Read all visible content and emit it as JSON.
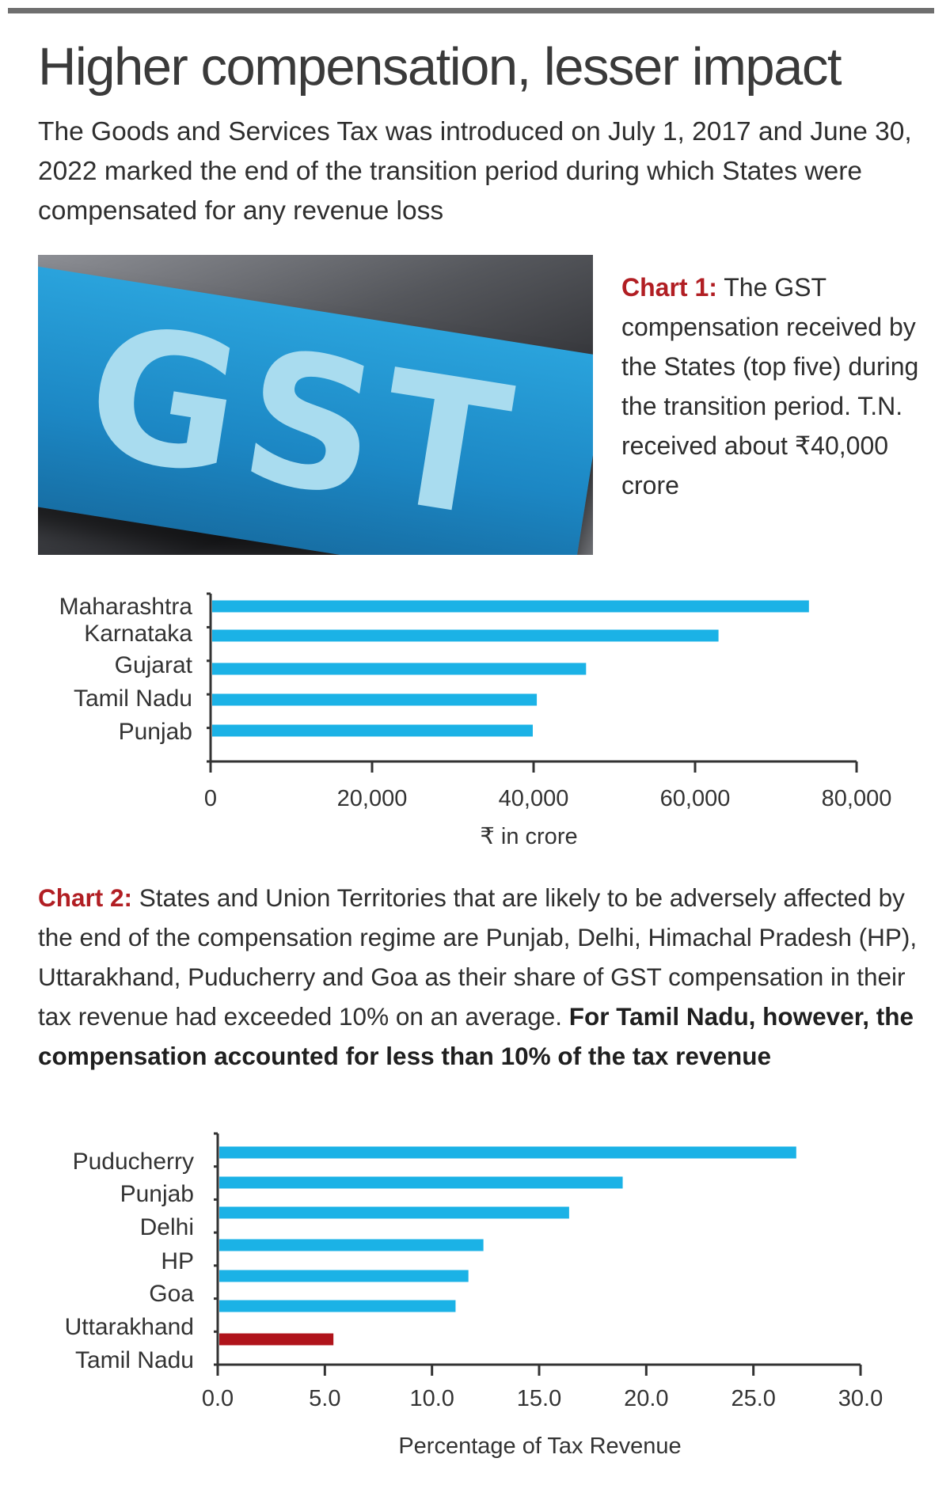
{
  "title": "Higher compensation, lesser impact",
  "subtitle": "The Goods and Services Tax was introduced on July 1, 2017 and June 30, 2022 marked the end of the transition period during which States were compensated for any revenue loss",
  "photo": {
    "text": "GST"
  },
  "chart1_caption": {
    "label": "Chart 1:",
    "text": " The GST compensation received by the States (top five) during the transition period. T.N. received about ₹40,000 crore"
  },
  "chart2_caption": {
    "label": "Chart 2:",
    "text": " States and Union Territories that are likely to be adversely affected by the end of the compensation regime are Punjab, Delhi, Himachal Pradesh (HP), Uttarakhand, Puducherry and Goa as their share of GST compensation in their tax revenue had exceeded 10% on an average. ",
    "bold": "For Tamil Nadu, however, the compensation accounted for less than 10% of the tax revenue"
  },
  "chart_data": [
    {
      "type": "bar",
      "orientation": "horizontal",
      "categories": [
        "Maharashtra",
        "Karnataka",
        "Gujarat",
        "Tamil Nadu",
        "Punjab"
      ],
      "values": [
        74100,
        62900,
        46500,
        40400,
        39900
      ],
      "xlabel": "₹ in crore",
      "xlim": [
        0,
        80000
      ],
      "xticks": [
        "0",
        "20,000",
        "40,000",
        "60,000",
        "80,000"
      ],
      "colors": [
        "#1bb2e6",
        "#1bb2e6",
        "#1bb2e6",
        "#1bb2e6",
        "#1bb2e6"
      ],
      "grid": false
    },
    {
      "type": "bar",
      "orientation": "horizontal",
      "categories": [
        "Puducherry",
        "Punjab",
        "Delhi",
        "HP",
        "Goa",
        "Uttarakhand",
        "Tamil Nadu"
      ],
      "values": [
        27.0,
        18.9,
        16.4,
        12.4,
        11.7,
        11.1,
        5.4
      ],
      "xlabel": "Percentage of Tax Revenue",
      "xlim": [
        0,
        30
      ],
      "xticks": [
        "0.0",
        "5.0",
        "10.0",
        "15.0",
        "20.0",
        "25.0",
        "30.0"
      ],
      "colors": [
        "#1bb2e6",
        "#1bb2e6",
        "#1bb2e6",
        "#1bb2e6",
        "#1bb2e6",
        "#1bb2e6",
        "#b0141b"
      ],
      "grid": false
    }
  ]
}
